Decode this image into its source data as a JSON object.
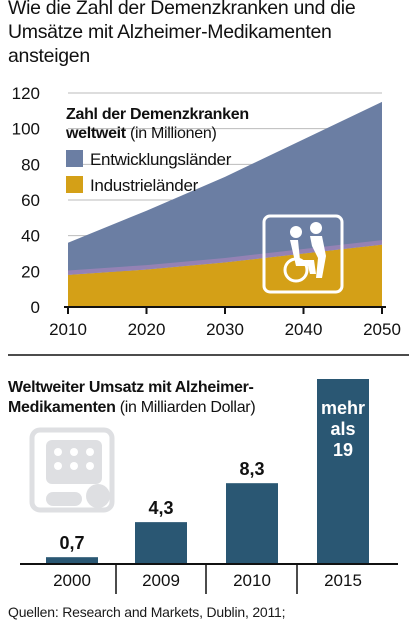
{
  "headline": "Wie die Zahl der Demenzkranken und die Umsätze mit Alzheimer-Medikamenten ansteigen",
  "chart_data": [
    {
      "type": "area",
      "title_bold": "Zahl der Demenzkranken weltweit",
      "title_unit": "(in Millionen)",
      "x": [
        2010,
        2020,
        2030,
        2040,
        2050
      ],
      "x_ticks": [
        "2010",
        "2020",
        "2030",
        "2040",
        "2050"
      ],
      "y_ticks": [
        "0",
        "20",
        "40",
        "60",
        "80",
        "100",
        "120"
      ],
      "ylim": [
        0,
        120
      ],
      "stacked": true,
      "series": [
        {
          "name": "Industrieländer",
          "color": "#d4a017",
          "values": [
            18,
            21,
            25,
            30,
            35
          ]
        },
        {
          "name": "Entwicklungsländer",
          "color": "#6b7ea3",
          "values": [
            18,
            33,
            48,
            64,
            80
          ]
        }
      ],
      "grid": "horizontal",
      "legend_position": "top-left",
      "icon": "wheelchair-caregiver-icon"
    },
    {
      "type": "bar",
      "title_bold": "Weltweiter Umsatz mit Alzheimer-Medikamenten",
      "title_unit": "(in Milliarden Dollar)",
      "categories": [
        "2000",
        "2009",
        "2010",
        "2015"
      ],
      "values": [
        0.7,
        4.3,
        8.3,
        19
      ],
      "data_labels": [
        "0,7",
        "4,3",
        "8,3",
        "mehr als 19"
      ],
      "bar_color": "#2a5773",
      "icon": "pill-blister-icon"
    }
  ],
  "source": "Quellen: Research and Markets, Dublin, 2011;"
}
